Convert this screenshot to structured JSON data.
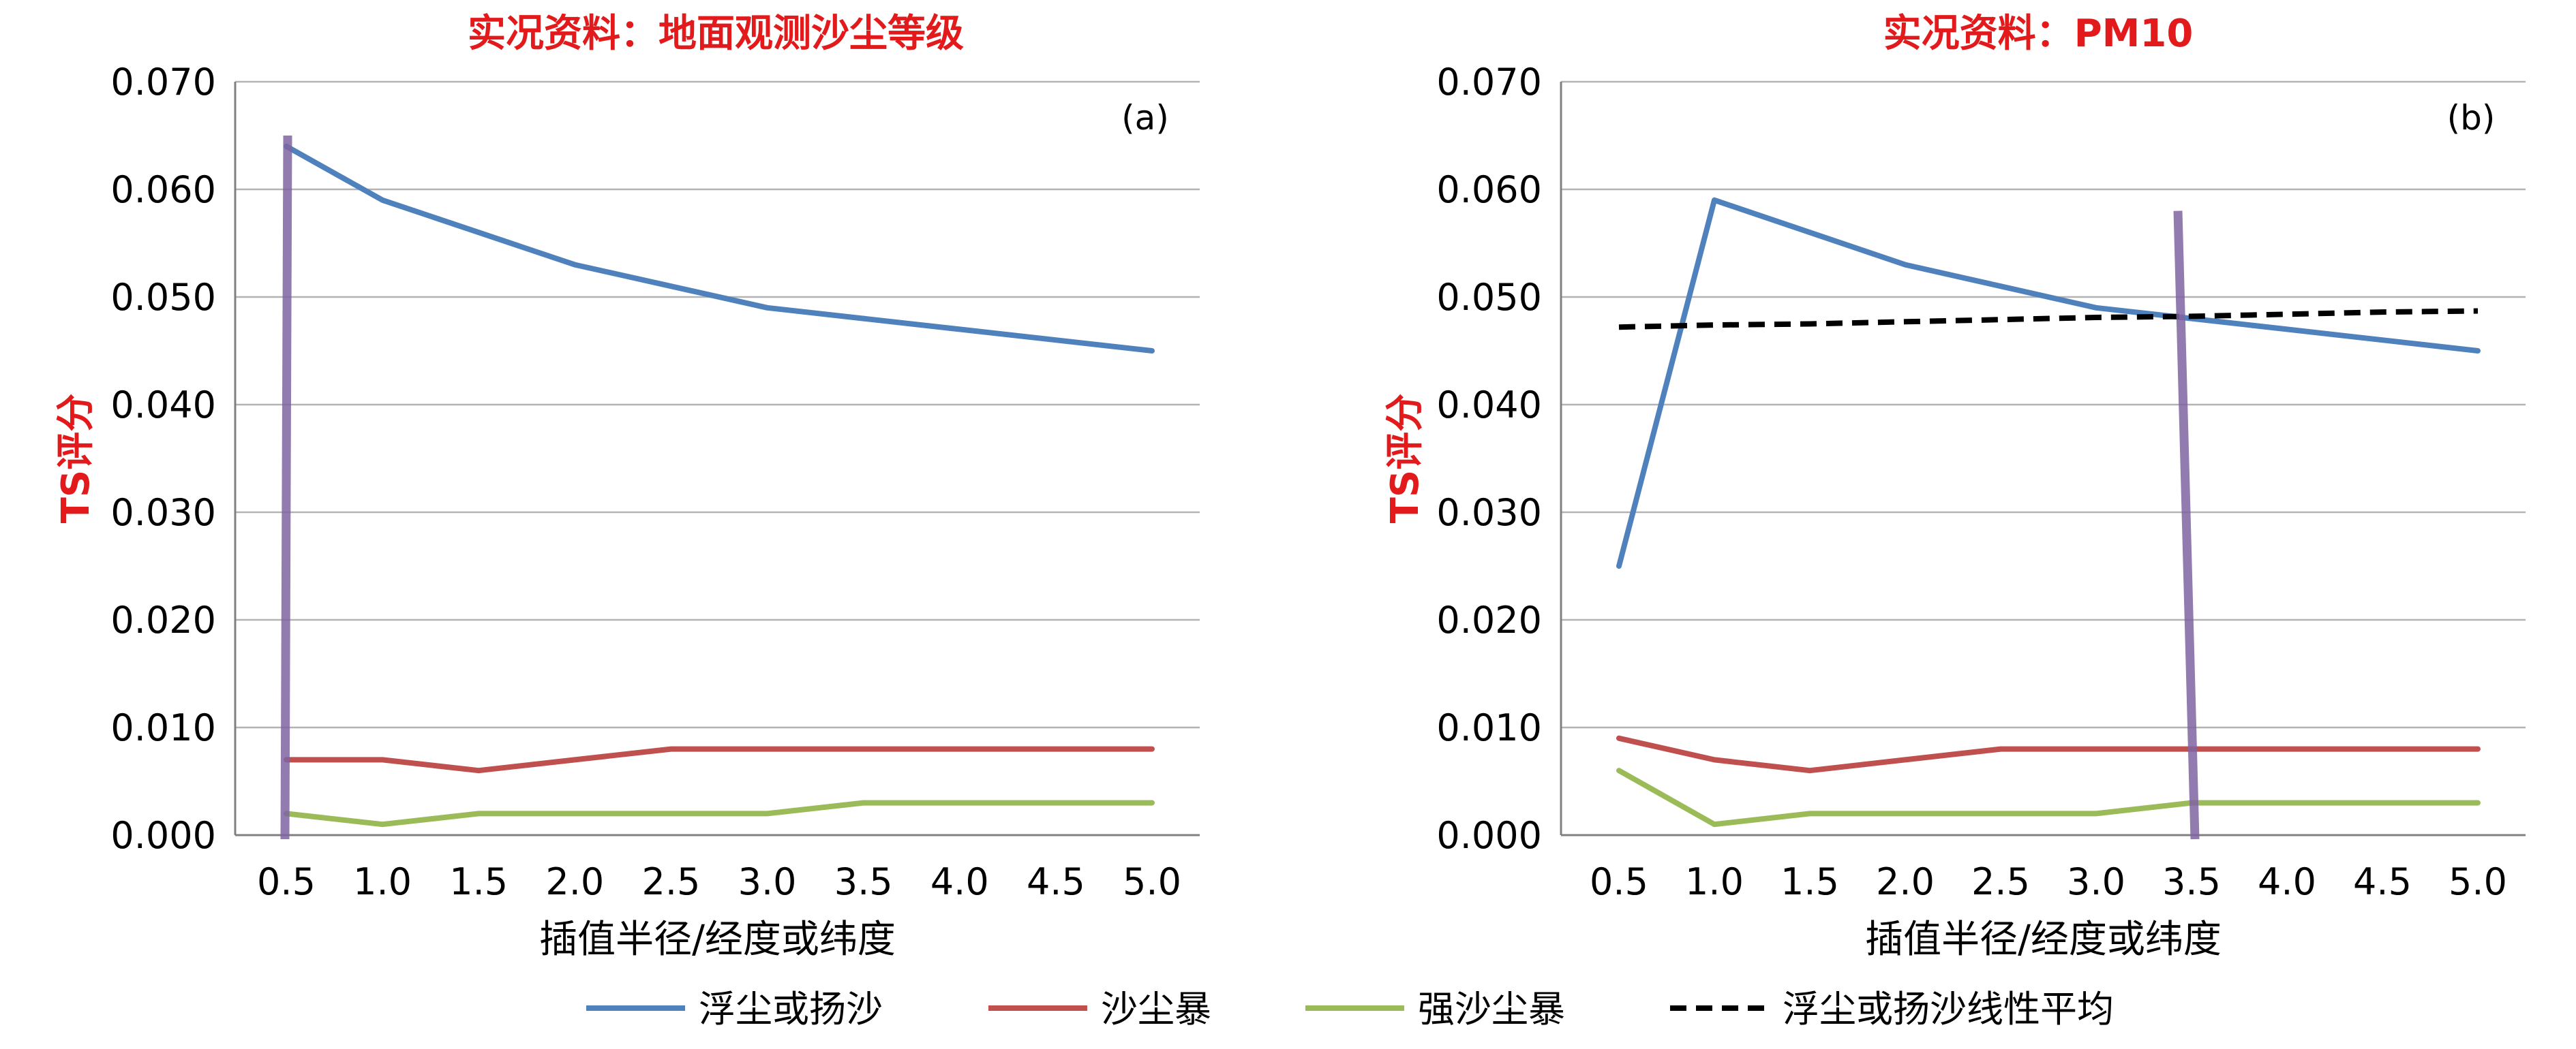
{
  "chart_data": [
    {
      "type": "line",
      "title": "实况资料：地面观测沙尘等级",
      "panel_label": "(a)",
      "xlabel": "插值半径/经度或纬度",
      "ylabel": "TS评分",
      "x": [
        "0.5",
        "1.0",
        "1.5",
        "2.0",
        "2.5",
        "3.0",
        "3.5",
        "4.0",
        "4.5",
        "5.0"
      ],
      "ylim": [
        0,
        0.07
      ],
      "yticks": [
        "0.000",
        "0.010",
        "0.020",
        "0.030",
        "0.040",
        "0.050",
        "0.060",
        "0.070"
      ],
      "grid": true,
      "vertical_marker_x": 0.5,
      "series": [
        {
          "name": "浮尘或扬沙",
          "color": "#4f81bd",
          "values": [
            0.064,
            0.059,
            0.056,
            0.053,
            0.051,
            0.049,
            0.048,
            0.047,
            0.046,
            0.045
          ]
        },
        {
          "name": "沙尘暴",
          "color": "#c0504d",
          "values": [
            0.007,
            0.007,
            0.006,
            0.007,
            0.008,
            0.008,
            0.008,
            0.008,
            0.008,
            0.008
          ]
        },
        {
          "name": "强沙尘暴",
          "color": "#9bbb59",
          "values": [
            0.002,
            0.001,
            0.002,
            0.002,
            0.002,
            0.002,
            0.003,
            0.003,
            0.003,
            0.003
          ]
        }
      ]
    },
    {
      "type": "line",
      "title": "实况资料：PM10",
      "panel_label": "(b)",
      "xlabel": "插值半径/经度或纬度",
      "ylabel": "TS评分",
      "x": [
        "0.5",
        "1.0",
        "1.5",
        "2.0",
        "2.5",
        "3.0",
        "3.5",
        "4.0",
        "4.5",
        "5.0"
      ],
      "ylim": [
        0,
        0.07
      ],
      "yticks": [
        "0.000",
        "0.010",
        "0.020",
        "0.030",
        "0.040",
        "0.050",
        "0.060",
        "0.070"
      ],
      "grid": true,
      "vertical_marker_x": 3.5,
      "series": [
        {
          "name": "浮尘或扬沙",
          "color": "#4f81bd",
          "values": [
            0.025,
            0.059,
            0.056,
            0.053,
            0.051,
            0.049,
            0.048,
            0.047,
            0.046,
            0.045
          ]
        },
        {
          "name": "沙尘暴",
          "color": "#c0504d",
          "values": [
            0.009,
            0.007,
            0.006,
            0.007,
            0.008,
            0.008,
            0.008,
            0.008,
            0.008,
            0.008
          ]
        },
        {
          "name": "强沙尘暴",
          "color": "#9bbb59",
          "values": [
            0.006,
            0.001,
            0.002,
            0.002,
            0.002,
            0.002,
            0.003,
            0.003,
            0.003,
            0.003
          ]
        },
        {
          "name": "浮尘或扬沙线性平均",
          "color": "#000000",
          "dashed": true,
          "values": [
            0.0472,
            0.0474,
            0.0475,
            0.0477,
            0.0479,
            0.0481,
            0.0482,
            0.0484,
            0.0486,
            0.0487
          ]
        }
      ]
    }
  ],
  "legend": {
    "placement": "bottom",
    "items": [
      {
        "label": "浮尘或扬沙",
        "color": "#4f81bd",
        "dashed": false
      },
      {
        "label": "沙尘暴",
        "color": "#c0504d",
        "dashed": false
      },
      {
        "label": "强沙尘暴",
        "color": "#9bbb59",
        "dashed": false
      },
      {
        "label": "浮尘或扬沙线性平均",
        "color": "#000000",
        "dashed": true
      }
    ]
  },
  "colors": {
    "title": "#e31a1c",
    "ylabel": "#e31a1c",
    "marker": "#8064a2",
    "grid": "#b3b3b3",
    "text": "#000000"
  }
}
